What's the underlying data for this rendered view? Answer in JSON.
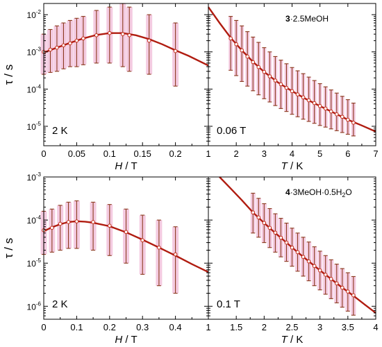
{
  "colors": {
    "fit": "#b01c10",
    "point": "#c42a16",
    "error": "#8b3a1e",
    "shade": "#f2c2dc",
    "axis": "#000000"
  },
  "chart_data": [
    {
      "id": "top-left",
      "type": "scatter",
      "compound": "",
      "condition": "2 K",
      "xlabel_var": "H",
      "xlabel_unit": " / T",
      "ylabel_var": "τ",
      "ylabel_unit": " / s",
      "xlim": [
        0,
        0.25
      ],
      "ylog": true,
      "ylim": [
        3e-06,
        0.02
      ],
      "xticks": [
        0,
        0.05,
        0.1,
        0.15,
        0.2
      ],
      "xtick_labels": [
        "0",
        "0.05",
        "0.1",
        "0.15",
        "0.2"
      ],
      "xtick_end_label": "1",
      "yticks": [
        1e-05,
        0.0001,
        0.001,
        0.01
      ],
      "ytick_labels": [
        [
          "10",
          "-5"
        ],
        [
          "10",
          "-4"
        ],
        [
          "10",
          "-3"
        ],
        [
          "10",
          "-2"
        ]
      ],
      "points": [
        {
          "x": 0.0,
          "y": 0.001,
          "lo": 0.00025,
          "hi": 0.003
        },
        {
          "x": 0.01,
          "y": 0.00115,
          "lo": 0.00028,
          "hi": 0.004
        },
        {
          "x": 0.02,
          "y": 0.0013,
          "lo": 0.0003,
          "hi": 0.005
        },
        {
          "x": 0.03,
          "y": 0.0015,
          "lo": 0.00035,
          "hi": 0.006
        },
        {
          "x": 0.04,
          "y": 0.0017,
          "lo": 0.0004,
          "hi": 0.007
        },
        {
          "x": 0.05,
          "y": 0.002,
          "lo": 0.0004,
          "hi": 0.008
        },
        {
          "x": 0.06,
          "y": 0.0023,
          "lo": 0.00045,
          "hi": 0.009
        },
        {
          "x": 0.08,
          "y": 0.0028,
          "lo": 0.0005,
          "hi": 0.013
        },
        {
          "x": 0.1,
          "y": 0.0032,
          "lo": 0.0005,
          "hi": 0.016
        },
        {
          "x": 0.12,
          "y": 0.003,
          "lo": 0.0004,
          "hi": 0.02
        },
        {
          "x": 0.13,
          "y": 0.0028,
          "lo": 0.0003,
          "hi": 0.016
        },
        {
          "x": 0.16,
          "y": 0.002,
          "lo": 0.00025,
          "hi": 0.01
        },
        {
          "x": 0.2,
          "y": 0.00105,
          "lo": 0.00012,
          "hi": 0.006
        }
      ],
      "fit": [
        [
          0,
          0.00096
        ],
        [
          0.02,
          0.0013
        ],
        [
          0.04,
          0.00175
        ],
        [
          0.06,
          0.0023
        ],
        [
          0.08,
          0.00285
        ],
        [
          0.1,
          0.0032
        ],
        [
          0.12,
          0.0032
        ],
        [
          0.14,
          0.0028
        ],
        [
          0.16,
          0.0022
        ],
        [
          0.18,
          0.0016
        ],
        [
          0.2,
          0.0011
        ],
        [
          0.22,
          0.00078
        ],
        [
          0.25,
          0.00043
        ]
      ]
    },
    {
      "id": "top-right",
      "type": "scatter",
      "compound_bold": "3",
      "compound_rest": "·2.5MeOH",
      "condition": "0.06 T",
      "xlabel_var": "T",
      "xlabel_unit": " / K",
      "xlim": [
        1,
        7
      ],
      "ylog": true,
      "ylim": [
        3e-06,
        0.02
      ],
      "xticks": [
        2,
        3,
        4,
        5,
        6,
        7
      ],
      "xtick_labels": [
        "2",
        "3",
        "4",
        "5",
        "6",
        "7"
      ],
      "points": [
        {
          "x": 1.8,
          "y": 0.0023,
          "lo": 0.00032,
          "hi": 0.009
        },
        {
          "x": 2.0,
          "y": 0.0016,
          "lo": 0.00023,
          "hi": 0.007
        },
        {
          "x": 2.2,
          "y": 0.0011,
          "lo": 0.00016,
          "hi": 0.005
        },
        {
          "x": 2.4,
          "y": 0.00075,
          "lo": 0.00012,
          "hi": 0.0035
        },
        {
          "x": 2.6,
          "y": 0.00053,
          "lo": 9e-05,
          "hi": 0.0025
        },
        {
          "x": 2.8,
          "y": 0.00039,
          "lo": 7e-05,
          "hi": 0.0018
        },
        {
          "x": 3.0,
          "y": 0.00029,
          "lo": 5.5e-05,
          "hi": 0.0013
        },
        {
          "x": 3.2,
          "y": 0.00022,
          "lo": 4.5e-05,
          "hi": 0.001
        },
        {
          "x": 3.4,
          "y": 0.00017,
          "lo": 3.6e-05,
          "hi": 0.00075
        },
        {
          "x": 3.6,
          "y": 0.000135,
          "lo": 3e-05,
          "hi": 0.0006
        },
        {
          "x": 3.8,
          "y": 0.000108,
          "lo": 2.5e-05,
          "hi": 0.00048
        },
        {
          "x": 4.0,
          "y": 8.8e-05,
          "lo": 2.1e-05,
          "hi": 0.00038
        },
        {
          "x": 4.2,
          "y": 7.2e-05,
          "lo": 1.8e-05,
          "hi": 0.00031
        },
        {
          "x": 4.4,
          "y": 6e-05,
          "lo": 1.55e-05,
          "hi": 0.00026
        },
        {
          "x": 4.6,
          "y": 5e-05,
          "lo": 1.35e-05,
          "hi": 0.00021
        },
        {
          "x": 4.8,
          "y": 4.2e-05,
          "lo": 1.2e-05,
          "hi": 0.00017
        },
        {
          "x": 5.0,
          "y": 3.5e-05,
          "lo": 1.05e-05,
          "hi": 0.00014
        },
        {
          "x": 5.2,
          "y": 3e-05,
          "lo": 9.5e-06,
          "hi": 0.000115
        },
        {
          "x": 5.4,
          "y": 2.5e-05,
          "lo": 8.5e-06,
          "hi": 9.5e-05
        },
        {
          "x": 5.6,
          "y": 2.1e-05,
          "lo": 7.6e-06,
          "hi": 7.8e-05
        },
        {
          "x": 5.8,
          "y": 1.8e-05,
          "lo": 6.8e-06,
          "hi": 6.4e-05
        },
        {
          "x": 6.0,
          "y": 1.5e-05,
          "lo": 6.1e-06,
          "hi": 5.2e-05
        },
        {
          "x": 6.2,
          "y": 1.25e-05,
          "lo": 5.5e-06,
          "hi": 4.2e-05
        }
      ],
      "fit": [
        [
          1,
          0.016
        ],
        [
          1.4,
          0.006
        ],
        [
          1.8,
          0.0024
        ],
        [
          2.2,
          0.0011
        ],
        [
          2.6,
          0.00054
        ],
        [
          3,
          0.00029
        ],
        [
          3.5,
          0.00015
        ],
        [
          4,
          8.8e-05
        ],
        [
          4.5,
          5.4e-05
        ],
        [
          5,
          3.5e-05
        ],
        [
          5.5,
          2.3e-05
        ],
        [
          6,
          1.5e-05
        ],
        [
          6.5,
          1.05e-05
        ],
        [
          7,
          7.2e-06
        ]
      ]
    },
    {
      "id": "bottom-left",
      "type": "scatter",
      "compound": "",
      "condition": "2 K",
      "xlabel_var": "H",
      "xlabel_unit": " / T",
      "ylabel_var": "τ",
      "ylabel_unit": " / s",
      "xlim": [
        0,
        0.5
      ],
      "ylog": true,
      "ylim": [
        5e-07,
        0.001
      ],
      "xticks": [
        0,
        0.1,
        0.2,
        0.3,
        0.4
      ],
      "xtick_labels": [
        "0",
        "0.1",
        "0.2",
        "0.3",
        "0.4"
      ],
      "xtick_end_label": "1",
      "yticks": [
        1e-06,
        1e-05,
        0.0001,
        0.001
      ],
      "ytick_labels": [
        [
          "10",
          "-6"
        ],
        [
          "10",
          "-5"
        ],
        [
          "10",
          "-4"
        ],
        [
          "10",
          "-3"
        ]
      ],
      "points": [
        {
          "x": 0.0,
          "y": 5.8e-05,
          "lo": 1.6e-05,
          "hi": 0.00016
        },
        {
          "x": 0.025,
          "y": 6.6e-05,
          "lo": 1.8e-05,
          "hi": 0.00018
        },
        {
          "x": 0.05,
          "y": 8.2e-05,
          "lo": 2e-05,
          "hi": 0.00022
        },
        {
          "x": 0.075,
          "y": 9e-05,
          "lo": 2.2e-05,
          "hi": 0.00026
        },
        {
          "x": 0.1,
          "y": 9.3e-05,
          "lo": 2.2e-05,
          "hi": 0.00028
        },
        {
          "x": 0.15,
          "y": 9e-05,
          "lo": 2e-05,
          "hi": 0.00026
        },
        {
          "x": 0.2,
          "y": 7.4e-05,
          "lo": 1.5e-05,
          "hi": 0.00023
        },
        {
          "x": 0.25,
          "y": 5.3e-05,
          "lo": 1e-05,
          "hi": 0.00018
        },
        {
          "x": 0.3,
          "y": 3.4e-05,
          "lo": 5.5e-06,
          "hi": 0.00013
        },
        {
          "x": 0.35,
          "y": 2.3e-05,
          "lo": 3e-06,
          "hi": 0.0001
        },
        {
          "x": 0.4,
          "y": 1.6e-05,
          "lo": 2e-06,
          "hi": 7e-05
        }
      ],
      "fit": [
        [
          0,
          5.5e-05
        ],
        [
          0.025,
          6.8e-05
        ],
        [
          0.05,
          8e-05
        ],
        [
          0.075,
          9e-05
        ],
        [
          0.1,
          9.4e-05
        ],
        [
          0.125,
          9.2e-05
        ],
        [
          0.15,
          8.7e-05
        ],
        [
          0.2,
          7.2e-05
        ],
        [
          0.25,
          5.2e-05
        ],
        [
          0.3,
          3.5e-05
        ],
        [
          0.35,
          2.3e-05
        ],
        [
          0.4,
          1.5e-05
        ],
        [
          0.45,
          9.5e-06
        ],
        [
          0.5,
          6.2e-06
        ]
      ]
    },
    {
      "id": "bottom-right",
      "type": "scatter",
      "compound_bold": "4",
      "compound_rest": "·3MeOH·0.5H",
      "compound_sub": "2",
      "compound_tail": "O",
      "condition": "0.1 T",
      "xlabel_var": "T",
      "xlabel_unit": " / K",
      "xlim": [
        1,
        4
      ],
      "ylog": true,
      "ylim": [
        5e-07,
        0.001
      ],
      "xticks": [
        1.5,
        2,
        2.5,
        3,
        3.5,
        4
      ],
      "xtick_labels": [
        "1.5",
        "2",
        "2.5",
        "3",
        "3.5",
        "4"
      ],
      "points": [
        {
          "x": 1.8,
          "y": 0.00015,
          "lo": 5e-05,
          "hi": 0.00042
        },
        {
          "x": 1.9,
          "y": 0.000115,
          "lo": 4e-05,
          "hi": 0.00032
        },
        {
          "x": 2.0,
          "y": 8.6e-05,
          "lo": 3e-05,
          "hi": 0.00024
        },
        {
          "x": 2.1,
          "y": 6.6e-05,
          "lo": 2.3e-05,
          "hi": 0.000185
        },
        {
          "x": 2.2,
          "y": 5.1e-05,
          "lo": 1.8e-05,
          "hi": 0.00014
        },
        {
          "x": 2.3,
          "y": 3.9e-05,
          "lo": 1.4e-05,
          "hi": 0.00011
        },
        {
          "x": 2.4,
          "y": 3e-05,
          "lo": 1.1e-05,
          "hi": 8.5e-05
        },
        {
          "x": 2.5,
          "y": 2.3e-05,
          "lo": 8.5e-06,
          "hi": 6.5e-05
        },
        {
          "x": 2.6,
          "y": 1.8e-05,
          "lo": 6.5e-06,
          "hi": 5e-05
        },
        {
          "x": 2.7,
          "y": 1.4e-05,
          "lo": 5e-06,
          "hi": 4e-05
        },
        {
          "x": 2.8,
          "y": 1.1e-05,
          "lo": 3.9e-06,
          "hi": 3.1e-05
        },
        {
          "x": 2.9,
          "y": 8.6e-06,
          "lo": 3e-06,
          "hi": 2.4e-05
        },
        {
          "x": 3.0,
          "y": 6.8e-06,
          "lo": 2.4e-06,
          "hi": 1.9e-05
        },
        {
          "x": 3.1,
          "y": 5.4e-06,
          "lo": 1.9e-06,
          "hi": 1.5e-05
        },
        {
          "x": 3.2,
          "y": 4.3e-06,
          "lo": 1.5e-06,
          "hi": 1.2e-05
        },
        {
          "x": 3.3,
          "y": 3.4e-06,
          "lo": 1.2e-06,
          "hi": 9.5e-06
        },
        {
          "x": 3.4,
          "y": 2.7e-06,
          "lo": 9.5e-07,
          "hi": 7.5e-06
        },
        {
          "x": 3.5,
          "y": 2.2e-06,
          "lo": 7.7e-07,
          "hi": 6e-06
        },
        {
          "x": 3.6,
          "y": 1.8e-06,
          "lo": 6.2e-07,
          "hi": 4.9e-06
        }
      ],
      "fit": [
        [
          1.2,
          0.001
        ],
        [
          1.4,
          0.00054
        ],
        [
          1.6,
          0.00029
        ],
        [
          1.8,
          0.00015
        ],
        [
          2,
          8.6e-05
        ],
        [
          2.2,
          5e-05
        ],
        [
          2.4,
          3e-05
        ],
        [
          2.6,
          1.8e-05
        ],
        [
          2.8,
          1.1e-05
        ],
        [
          3,
          6.8e-06
        ],
        [
          3.2,
          4.3e-06
        ],
        [
          3.4,
          2.7e-06
        ],
        [
          3.6,
          1.75e-06
        ],
        [
          3.8,
          1.1e-06
        ],
        [
          4,
          7e-07
        ]
      ]
    }
  ]
}
